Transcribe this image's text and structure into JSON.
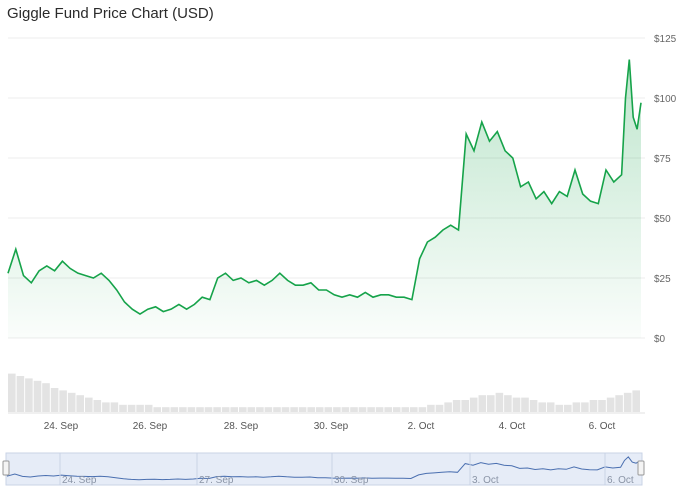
{
  "chart_data": {
    "type": "area",
    "title": "Giggle Fund Price Chart (USD)",
    "xlabel": "",
    "ylabel": "",
    "ylim": [
      0,
      125
    ],
    "y_ticks": [
      "$125",
      "$100",
      "$75",
      "$50",
      "$25",
      "$0"
    ],
    "x_ticks": [
      "24. Sep",
      "26. Sep",
      "28. Sep",
      "30. Sep",
      "2. Oct",
      "4. Oct",
      "6. Oct"
    ],
    "navigator_ticks": [
      "24. Sep",
      "27. Sep",
      "30. Sep",
      "3. Oct",
      "6. Oct"
    ],
    "grid": true,
    "accent_color": "#16a34a",
    "series": [
      {
        "values": [
          [
            23.0,
            27
          ],
          [
            23.2,
            37
          ],
          [
            23.4,
            26
          ],
          [
            23.6,
            23
          ],
          [
            23.8,
            28
          ],
          [
            24.0,
            30
          ],
          [
            24.2,
            28
          ],
          [
            24.4,
            32
          ],
          [
            24.6,
            29
          ],
          [
            24.8,
            27
          ],
          [
            25.0,
            26
          ],
          [
            25.2,
            25
          ],
          [
            25.4,
            27
          ],
          [
            25.6,
            24
          ],
          [
            25.8,
            20
          ],
          [
            26.0,
            15
          ],
          [
            26.2,
            12
          ],
          [
            26.4,
            10
          ],
          [
            26.6,
            12
          ],
          [
            26.8,
            13
          ],
          [
            27.0,
            11
          ],
          [
            27.2,
            12
          ],
          [
            27.4,
            14
          ],
          [
            27.6,
            12
          ],
          [
            27.8,
            14
          ],
          [
            28.0,
            17
          ],
          [
            28.2,
            16
          ],
          [
            28.4,
            25
          ],
          [
            28.6,
            27
          ],
          [
            28.8,
            24
          ],
          [
            29.0,
            25
          ],
          [
            29.2,
            23
          ],
          [
            29.4,
            24
          ],
          [
            29.6,
            22
          ],
          [
            29.8,
            24
          ],
          [
            30.0,
            27
          ],
          [
            30.2,
            24
          ],
          [
            30.4,
            22
          ],
          [
            30.6,
            22
          ],
          [
            30.8,
            23
          ],
          [
            31.0,
            20
          ],
          [
            31.2,
            20
          ],
          [
            31.4,
            18
          ],
          [
            31.6,
            17
          ],
          [
            31.8,
            18
          ],
          [
            32.0,
            17
          ],
          [
            32.2,
            19
          ],
          [
            32.4,
            17
          ],
          [
            32.6,
            18
          ],
          [
            32.8,
            18
          ],
          [
            33.0,
            17
          ],
          [
            33.2,
            17
          ],
          [
            33.4,
            16
          ],
          [
            33.6,
            33
          ],
          [
            33.8,
            40
          ],
          [
            34.0,
            42
          ],
          [
            34.2,
            45
          ],
          [
            34.4,
            47
          ],
          [
            34.6,
            45
          ],
          [
            34.8,
            85
          ],
          [
            35.0,
            78
          ],
          [
            35.2,
            90
          ],
          [
            35.4,
            82
          ],
          [
            35.6,
            86
          ],
          [
            35.8,
            78
          ],
          [
            36.0,
            75
          ],
          [
            36.2,
            63
          ],
          [
            36.4,
            65
          ],
          [
            36.6,
            58
          ],
          [
            36.8,
            61
          ],
          [
            37.0,
            56
          ],
          [
            37.2,
            61
          ],
          [
            37.4,
            59
          ],
          [
            37.6,
            70
          ],
          [
            37.8,
            60
          ],
          [
            38.0,
            57
          ],
          [
            38.2,
            56
          ],
          [
            38.4,
            70
          ],
          [
            38.6,
            65
          ],
          [
            38.8,
            68
          ],
          [
            38.9,
            100
          ],
          [
            39.0,
            116
          ],
          [
            39.1,
            92
          ],
          [
            39.2,
            87
          ],
          [
            39.3,
            98
          ]
        ]
      }
    ],
    "volume": [
      16,
      15,
      14,
      13,
      12,
      10,
      9,
      8,
      7,
      6,
      5,
      4,
      4,
      3,
      3,
      3,
      3,
      2,
      2,
      2,
      2,
      2,
      2,
      2,
      2,
      2,
      2,
      2,
      2,
      2,
      2,
      2,
      2,
      2,
      2,
      2,
      2,
      2,
      2,
      2,
      2,
      2,
      2,
      2,
      2,
      2,
      2,
      2,
      2,
      3,
      3,
      4,
      5,
      5,
      6,
      7,
      7,
      8,
      7,
      6,
      6,
      5,
      4,
      4,
      3,
      3,
      4,
      4,
      5,
      5,
      6,
      7,
      8,
      9
    ]
  }
}
